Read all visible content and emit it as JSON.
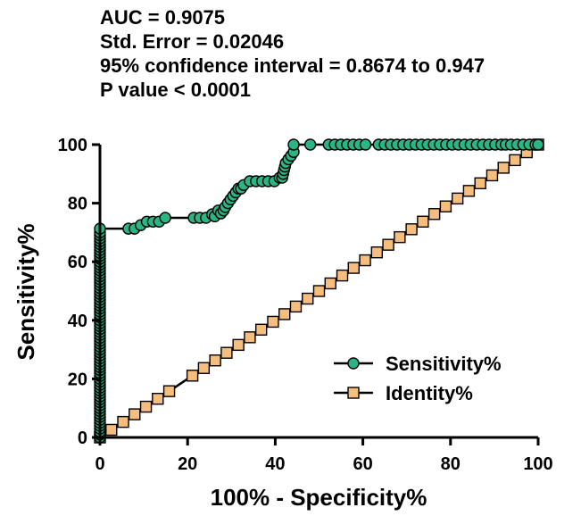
{
  "annotations": [
    "AUC = 0.9075",
    "Std. Error = 0.02046",
    "95% confidence interval = 0.8674 to 0.947",
    "P value < 0.0001"
  ],
  "chart_data": {
    "type": "line",
    "title": "",
    "xlabel": "100% - Specificity%",
    "ylabel": "Sensitivity%",
    "xlim": [
      0,
      100
    ],
    "ylim": [
      0,
      100
    ],
    "xticks": [
      0,
      20,
      40,
      60,
      80,
      100
    ],
    "yticks": [
      0,
      20,
      40,
      60,
      80,
      100
    ],
    "grid": false,
    "legend_position": "bottom-right",
    "series": [
      {
        "name": "Sensitivity%",
        "marker": "circle",
        "color": "#2bb584",
        "x": [
          0,
          0,
          0,
          0,
          0,
          0,
          0,
          0,
          0,
          0,
          0,
          0,
          0,
          0,
          0,
          0,
          0,
          0,
          0,
          0,
          0,
          0,
          0,
          0,
          0,
          0,
          0,
          0,
          0,
          0,
          0,
          0,
          0,
          0,
          0,
          0,
          0,
          0,
          0,
          0,
          0,
          0,
          0,
          0,
          0,
          0,
          0,
          0,
          0,
          0,
          0,
          0,
          0,
          0,
          0,
          0,
          0,
          0,
          0,
          0,
          0,
          0,
          0,
          0,
          0,
          0,
          0,
          0,
          0,
          0,
          0,
          0,
          6.5,
          7.9,
          9.3,
          10.7,
          12.1,
          13.5,
          14.9,
          21.4,
          22.8,
          24.2,
          25.6,
          26.2,
          27.0,
          27.6,
          28.2,
          28.6,
          29.2,
          29.8,
          30.4,
          31.0,
          31.6,
          32.2,
          32.8,
          34.2,
          35.6,
          37.0,
          38.4,
          39.8,
          41.0,
          41.6,
          41.8,
          42.0,
          42.2,
          42.4,
          43.0,
          43.6,
          44.2,
          44.2,
          48.0,
          52.2,
          53.6,
          55.0,
          56.4,
          57.8,
          59.2,
          60.6,
          63.6,
          65.0,
          66.4,
          67.8,
          69.2,
          70.6,
          72.0,
          73.4,
          74.8,
          76.2,
          77.6,
          79.0,
          80.4,
          81.8,
          83.2,
          84.6,
          86.0,
          87.4,
          88.8,
          90.2,
          91.6,
          92.6,
          93.8,
          95.2,
          96.6,
          98.0,
          99.4,
          100
        ],
        "y": [
          0,
          1,
          2,
          3,
          4,
          5,
          6,
          7,
          8,
          9,
          10,
          11,
          12,
          13,
          14,
          15,
          16,
          17,
          18,
          19,
          20,
          21,
          22,
          23,
          24,
          25,
          26,
          27,
          28,
          29,
          30,
          31,
          32,
          33,
          34,
          35,
          36,
          37,
          38,
          39,
          40,
          41,
          42,
          43,
          44,
          45,
          46,
          47,
          48,
          49,
          50,
          51,
          52,
          53,
          54,
          55,
          56,
          57,
          58,
          59,
          60,
          61,
          62,
          63,
          64,
          65,
          66,
          67,
          68,
          69,
          70,
          71.3,
          71.3,
          71.3,
          72.5,
          73.7,
          73.7,
          73.7,
          75,
          75,
          75,
          75,
          76.2,
          75.5,
          77.5,
          76.5,
          77.5,
          78.7,
          80,
          81.3,
          82.5,
          83.7,
          85,
          85,
          86.2,
          87.5,
          87.5,
          87.5,
          87.5,
          87.5,
          88.7,
          88.7,
          90,
          91.3,
          92.5,
          93.7,
          95,
          96.2,
          97.5,
          100,
          100,
          100,
          100,
          100,
          100,
          100,
          100,
          100,
          100,
          100,
          100,
          100,
          100,
          100,
          100,
          100,
          100,
          100,
          100,
          100,
          100,
          100,
          100,
          100,
          100,
          100,
          100,
          100,
          100,
          100,
          100,
          100,
          100,
          100,
          100,
          100
        ]
      },
      {
        "name": "Identity%",
        "marker": "square",
        "color": "#f5bd7e",
        "x": [
          0,
          2.6,
          5.3,
          7.9,
          10.5,
          13.2,
          15.8,
          21.1,
          23.7,
          26.3,
          28.9,
          31.6,
          34.2,
          36.8,
          39.5,
          42.1,
          44.7,
          47.4,
          50.0,
          52.6,
          55.3,
          57.9,
          60.5,
          63.2,
          65.8,
          68.4,
          71.1,
          73.7,
          76.3,
          78.9,
          81.6,
          84.2,
          86.8,
          89.5,
          92.1,
          94.7,
          97.4,
          100
        ],
        "y": [
          0,
          2.6,
          5.3,
          7.9,
          10.5,
          13.2,
          15.8,
          21.1,
          23.7,
          26.3,
          28.9,
          31.6,
          34.2,
          36.8,
          39.5,
          42.1,
          44.7,
          47.4,
          50.0,
          52.6,
          55.3,
          57.9,
          60.5,
          63.2,
          65.8,
          68.4,
          71.1,
          73.7,
          76.3,
          78.9,
          81.6,
          84.2,
          86.8,
          89.5,
          92.1,
          94.7,
          97.4,
          100
        ]
      }
    ]
  }
}
